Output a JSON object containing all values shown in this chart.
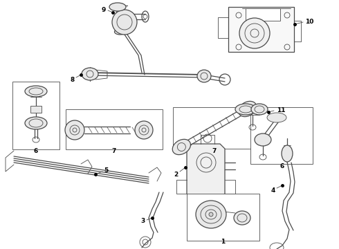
{
  "bg": "#ffffff",
  "lc": "#4a4a4a",
  "fig_w": 4.9,
  "fig_h": 3.6,
  "dpi": 100,
  "parts": {
    "label_fontsize": 6.5,
    "label_fontweight": "bold"
  }
}
